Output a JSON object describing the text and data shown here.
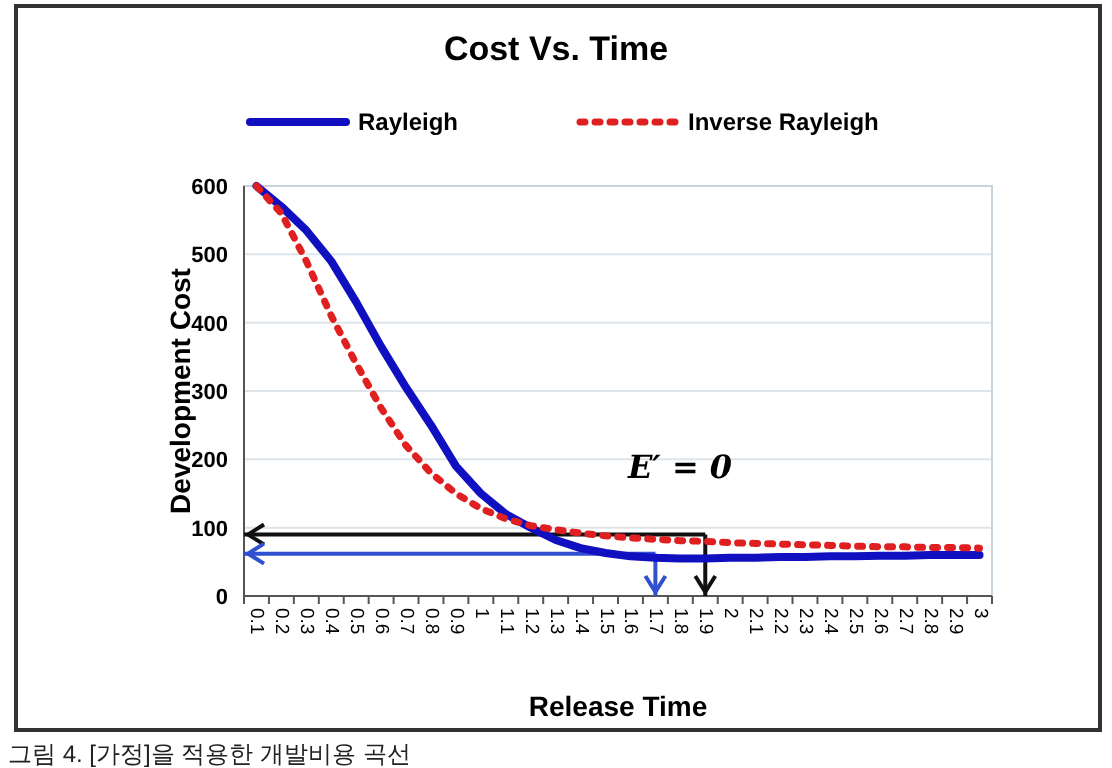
{
  "chart_data": {
    "type": "line",
    "title": "Cost  Vs. Time",
    "xlabel": "Release Time",
    "ylabel": "Development Cost",
    "categories": [
      "0.1",
      "0.2",
      "0.3",
      "0.4",
      "0.5",
      "0.6",
      "0.7",
      "0.8",
      "0.9",
      "1",
      "1.1",
      "1.2",
      "1.3",
      "1.4",
      "1.5",
      "1.6",
      "1.7",
      "1.8",
      "1.9",
      "2",
      "2.1",
      "2.2",
      "2.3",
      "2.4",
      "2.5",
      "2.6",
      "2.7",
      "2.8",
      "2.9",
      "3"
    ],
    "series": [
      {
        "name": "Rayleigh",
        "color": "#1010c0",
        "line_style": "solid",
        "values": [
          600,
          570,
          535,
          490,
          430,
          365,
          305,
          250,
          190,
          150,
          120,
          100,
          82,
          70,
          63,
          58,
          56,
          55,
          55,
          56,
          56,
          57,
          57,
          58,
          58,
          59,
          59,
          60,
          60,
          60
        ]
      },
      {
        "name": "Inverse Rayleigh",
        "color": "#e02020",
        "line_style": "dotted",
        "values": [
          600,
          560,
          490,
          410,
          340,
          275,
          220,
          180,
          150,
          128,
          113,
          103,
          97,
          92,
          88,
          85,
          83,
          81,
          80,
          78,
          77,
          76,
          75,
          74,
          73,
          72,
          72,
          71,
          71,
          70
        ]
      }
    ],
    "ref_lines": [
      {
        "axis": "y",
        "value": 90,
        "color": "#111111"
      },
      {
        "axis": "x",
        "value": "1.9",
        "color": "#111111"
      },
      {
        "axis": "y",
        "value": 62,
        "color": "#3050d0"
      },
      {
        "axis": "x",
        "value": "1.7",
        "color": "#3050d0"
      }
    ],
    "ylim": [
      0,
      600
    ],
    "yticks": [
      0,
      100,
      200,
      300,
      400,
      500,
      600
    ],
    "grid": "y",
    "legend": "top",
    "annotations": [
      "E′ = 0",
      "그림 4. [가정]을 적용한 개발비용 곡선"
    ]
  }
}
